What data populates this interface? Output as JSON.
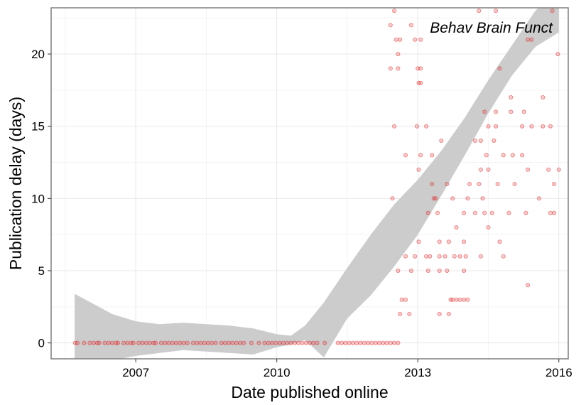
{
  "chart_data": {
    "type": "scatter",
    "annotation": "Behav Brain Funct",
    "xlabel": "Date published online",
    "ylabel": "Publication delay (days)",
    "xlim": [
      2005.2,
      2016.2
    ],
    "ylim": [
      -1.1,
      23.2
    ],
    "x_ticks": [
      {
        "value": 2007,
        "label": "2007"
      },
      {
        "value": 2010,
        "label": "2010"
      },
      {
        "value": 2013,
        "label": "2013"
      },
      {
        "value": 2016,
        "label": "2016"
      }
    ],
    "y_ticks": [
      {
        "value": 0,
        "label": "0"
      },
      {
        "value": 5,
        "label": "5"
      },
      {
        "value": 10,
        "label": "10"
      },
      {
        "value": 15,
        "label": "15"
      },
      {
        "value": 20,
        "label": "20"
      }
    ],
    "grid": true,
    "point_color": "#e31a1c",
    "band_color": "#cccccc",
    "panel_border_color": "#7f7f7f",
    "zero_delay_points": [
      [
        2005.71,
        0
      ],
      [
        2005.76,
        0
      ],
      [
        2005.9,
        0
      ],
      [
        2006.02,
        0
      ],
      [
        2006.1,
        0
      ],
      [
        2006.18,
        0
      ],
      [
        2006.22,
        0
      ],
      [
        2006.34,
        0
      ],
      [
        2006.42,
        0
      ],
      [
        2006.5,
        0
      ],
      [
        2006.58,
        0
      ],
      [
        2006.62,
        0
      ],
      [
        2006.74,
        0
      ],
      [
        2006.82,
        0
      ],
      [
        2006.9,
        0
      ],
      [
        2006.95,
        0
      ],
      [
        2007.06,
        0
      ],
      [
        2007.14,
        0
      ],
      [
        2007.22,
        0
      ],
      [
        2007.3,
        0
      ],
      [
        2007.38,
        0
      ],
      [
        2007.42,
        0
      ],
      [
        2007.54,
        0
      ],
      [
        2007.62,
        0
      ],
      [
        2007.7,
        0
      ],
      [
        2007.78,
        0
      ],
      [
        2007.86,
        0
      ],
      [
        2007.94,
        0
      ],
      [
        2008.02,
        0
      ],
      [
        2008.1,
        0
      ],
      [
        2008.22,
        0
      ],
      [
        2008.3,
        0
      ],
      [
        2008.38,
        0
      ],
      [
        2008.46,
        0
      ],
      [
        2008.54,
        0
      ],
      [
        2008.62,
        0
      ],
      [
        2008.7,
        0
      ],
      [
        2008.82,
        0
      ],
      [
        2008.9,
        0
      ],
      [
        2008.98,
        0
      ],
      [
        2009.06,
        0
      ],
      [
        2009.14,
        0
      ],
      [
        2009.22,
        0
      ],
      [
        2009.3,
        0
      ],
      [
        2009.46,
        0
      ],
      [
        2009.62,
        0
      ],
      [
        2009.74,
        0
      ],
      [
        2009.82,
        0
      ],
      [
        2009.9,
        0
      ],
      [
        2009.98,
        0
      ],
      [
        2010.06,
        0
      ],
      [
        2010.14,
        0
      ],
      [
        2010.22,
        0
      ],
      [
        2010.3,
        0
      ],
      [
        2010.38,
        0
      ],
      [
        2010.46,
        0
      ],
      [
        2010.54,
        0
      ],
      [
        2010.62,
        0
      ],
      [
        2010.7,
        0
      ],
      [
        2010.78,
        0
      ],
      [
        2010.86,
        0
      ],
      [
        2011.02,
        0
      ],
      [
        2011.3,
        0
      ],
      [
        2011.38,
        0
      ],
      [
        2011.46,
        0
      ],
      [
        2011.54,
        0
      ],
      [
        2011.62,
        0
      ],
      [
        2011.7,
        0
      ],
      [
        2011.78,
        0
      ],
      [
        2011.86,
        0
      ],
      [
        2011.94,
        0
      ],
      [
        2012.02,
        0
      ],
      [
        2012.1,
        0
      ],
      [
        2012.18,
        0
      ],
      [
        2012.26,
        0
      ],
      [
        2012.34,
        0
      ],
      [
        2012.42,
        0
      ],
      [
        2012.5,
        0
      ],
      [
        2012.58,
        0
      ]
    ],
    "delayed_points": [
      [
        2012.5,
        23
      ],
      [
        2012.42,
        22
      ],
      [
        2012.54,
        21
      ],
      [
        2012.62,
        21
      ],
      [
        2012.58,
        20
      ],
      [
        2012.86,
        22
      ],
      [
        2012.94,
        21
      ],
      [
        2013.06,
        21
      ],
      [
        2012.42,
        19
      ],
      [
        2012.58,
        19
      ],
      [
        2013.0,
        19
      ],
      [
        2013.06,
        19
      ],
      [
        2013.02,
        18
      ],
      [
        2013.06,
        18
      ],
      [
        2014.3,
        23
      ],
      [
        2014.66,
        23
      ],
      [
        2015.86,
        23
      ],
      [
        2014.74,
        19
      ],
      [
        2015.34,
        21
      ],
      [
        2015.42,
        21
      ],
      [
        2015.98,
        20
      ],
      [
        2014.98,
        17
      ],
      [
        2015.66,
        17
      ],
      [
        2014.42,
        16
      ],
      [
        2014.98,
        16
      ],
      [
        2015.26,
        16
      ],
      [
        2014.66,
        16
      ],
      [
        2012.5,
        15
      ],
      [
        2012.98,
        15
      ],
      [
        2013.18,
        15
      ],
      [
        2014.5,
        15
      ],
      [
        2014.66,
        15
      ],
      [
        2015.22,
        15
      ],
      [
        2015.42,
        15
      ],
      [
        2015.66,
        15
      ],
      [
        2015.82,
        15
      ],
      [
        2012.74,
        13
      ],
      [
        2013.06,
        13
      ],
      [
        2013.3,
        13
      ],
      [
        2013.5,
        14
      ],
      [
        2014.22,
        14
      ],
      [
        2014.34,
        14
      ],
      [
        2014.62,
        14
      ],
      [
        2014.82,
        13
      ],
      [
        2015.02,
        13
      ],
      [
        2015.22,
        13
      ],
      [
        2014.46,
        13
      ],
      [
        2014.5,
        12
      ],
      [
        2014.34,
        12
      ],
      [
        2015.34,
        12
      ],
      [
        2015.78,
        12
      ],
      [
        2016.0,
        12
      ],
      [
        2013.02,
        12
      ],
      [
        2013.3,
        11
      ],
      [
        2013.62,
        11
      ],
      [
        2014.1,
        11
      ],
      [
        2014.3,
        11
      ],
      [
        2014.7,
        11
      ],
      [
        2015.06,
        11
      ],
      [
        2015.9,
        11
      ],
      [
        2012.46,
        10
      ],
      [
        2013.34,
        10
      ],
      [
        2013.38,
        10
      ],
      [
        2013.74,
        10
      ],
      [
        2014.06,
        10
      ],
      [
        2014.38,
        10
      ],
      [
        2015.58,
        10
      ],
      [
        2013.22,
        9
      ],
      [
        2013.42,
        9
      ],
      [
        2013.98,
        9
      ],
      [
        2014.22,
        9
      ],
      [
        2014.42,
        9
      ],
      [
        2014.58,
        9
      ],
      [
        2014.94,
        9
      ],
      [
        2015.3,
        9
      ],
      [
        2015.82,
        9
      ],
      [
        2015.9,
        9
      ],
      [
        2013.82,
        8
      ],
      [
        2014.5,
        8
      ],
      [
        2012.74,
        6
      ],
      [
        2012.94,
        6
      ],
      [
        2013.18,
        6
      ],
      [
        2013.26,
        6
      ],
      [
        2013.46,
        6
      ],
      [
        2013.58,
        6
      ],
      [
        2013.78,
        6
      ],
      [
        2013.9,
        6
      ],
      [
        2014.02,
        6
      ],
      [
        2014.34,
        6
      ],
      [
        2014.82,
        6
      ],
      [
        2013.02,
        7
      ],
      [
        2013.46,
        7
      ],
      [
        2013.66,
        7
      ],
      [
        2013.98,
        7
      ],
      [
        2014.74,
        7
      ],
      [
        2012.58,
        5
      ],
      [
        2012.86,
        5
      ],
      [
        2013.22,
        5
      ],
      [
        2013.46,
        5
      ],
      [
        2013.62,
        5
      ],
      [
        2013.98,
        5
      ],
      [
        2015.34,
        4
      ],
      [
        2013.7,
        3
      ],
      [
        2013.74,
        3
      ],
      [
        2013.82,
        3
      ],
      [
        2013.9,
        3
      ],
      [
        2013.98,
        3
      ],
      [
        2014.06,
        3
      ],
      [
        2012.66,
        3
      ],
      [
        2012.74,
        3
      ],
      [
        2012.62,
        2
      ],
      [
        2012.82,
        2
      ],
      [
        2013.46,
        2
      ],
      [
        2013.66,
        2
      ]
    ],
    "confidence_band": {
      "x": [
        2005.7,
        2006.5,
        2007.0,
        2007.5,
        2008.0,
        2008.5,
        2009.0,
        2009.5,
        2010.0,
        2010.3,
        2010.6,
        2011.0,
        2011.5,
        2012.0,
        2012.5,
        2013.0,
        2013.5,
        2014.0,
        2014.5,
        2015.0,
        2015.5,
        2016.0
      ],
      "upper": [
        3.4,
        2.0,
        1.5,
        1.3,
        1.4,
        1.3,
        1.2,
        1.0,
        0.6,
        0.5,
        1.2,
        2.8,
        5.2,
        7.5,
        9.6,
        11.3,
        13.3,
        15.6,
        18.2,
        20.6,
        23.0,
        24.5
      ],
      "lower": [
        -1.5,
        -1.2,
        -0.9,
        -0.7,
        -0.5,
        -0.6,
        -0.7,
        -0.8,
        -0.3,
        -0.1,
        0.2,
        -1.0,
        1.7,
        3.3,
        5.3,
        7.5,
        10.2,
        13.0,
        15.9,
        18.5,
        20.5,
        21.5
      ]
    }
  }
}
